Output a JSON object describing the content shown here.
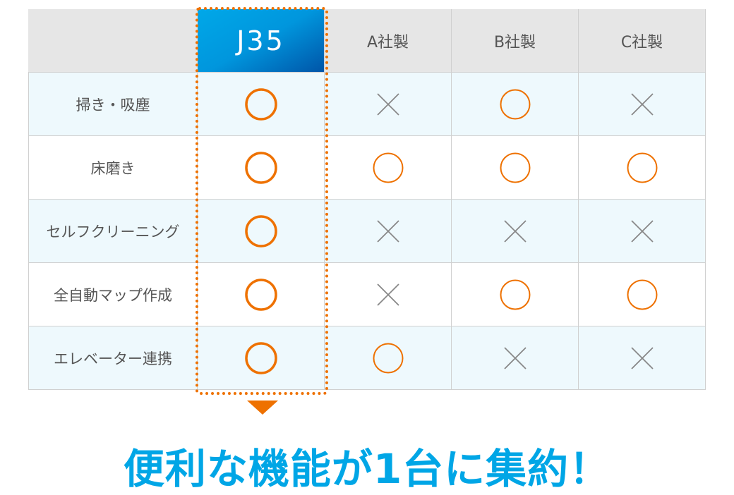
{
  "columns": [
    "J35",
    "A社製",
    "B社製",
    "C社製"
  ],
  "highlight_column": "J35",
  "rows": [
    {
      "feature": "掃き・吸塵",
      "marks": [
        "circle",
        "cross",
        "circle",
        "cross"
      ]
    },
    {
      "feature": "床磨き",
      "marks": [
        "circle",
        "circle",
        "circle",
        "circle"
      ]
    },
    {
      "feature": "セルフクリーニング",
      "marks": [
        "circle",
        "cross",
        "cross",
        "cross"
      ]
    },
    {
      "feature": "全自動マップ作成",
      "marks": [
        "circle",
        "cross",
        "circle",
        "circle"
      ]
    },
    {
      "feature": "エレベーター連携",
      "marks": [
        "circle",
        "circle",
        "cross",
        "cross"
      ]
    }
  ],
  "tagline": "便利な機能が1台に集約！",
  "colors": {
    "accent": "#ee7100",
    "brand": "#00a6e6",
    "cross": "#888888"
  }
}
